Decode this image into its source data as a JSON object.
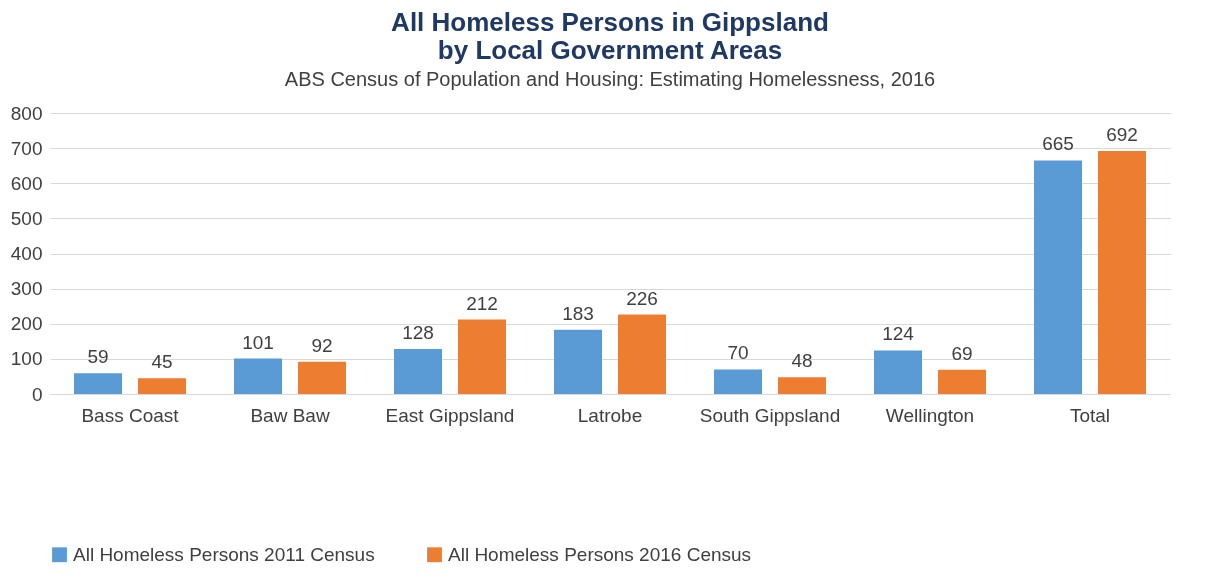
{
  "chart_data": {
    "type": "bar",
    "title": "All Homeless Persons in Gippsland\nby Local Government Areas",
    "subtitle": "ABS Census of Population and Housing: Estimating Homelessness, 2016",
    "categories": [
      "Bass Coast",
      "Baw Baw",
      "East Gippsland",
      "Latrobe",
      "South Gippsland",
      "Wellington",
      "Total"
    ],
    "series": [
      {
        "name": "All Homeless Persons 2011 Census",
        "color": "#5b9bd5",
        "values": [
          59,
          101,
          128,
          183,
          70,
          124,
          665
        ]
      },
      {
        "name": "All Homeless Persons 2016 Census",
        "color": "#ed7d31",
        "values": [
          45,
          92,
          212,
          226,
          48,
          69,
          692
        ]
      }
    ],
    "ylim": [
      0,
      800
    ],
    "yticks": [
      0,
      100,
      200,
      300,
      400,
      500,
      600,
      700,
      800
    ],
    "grid": "y",
    "legend": "bottom",
    "data_labels": true
  }
}
